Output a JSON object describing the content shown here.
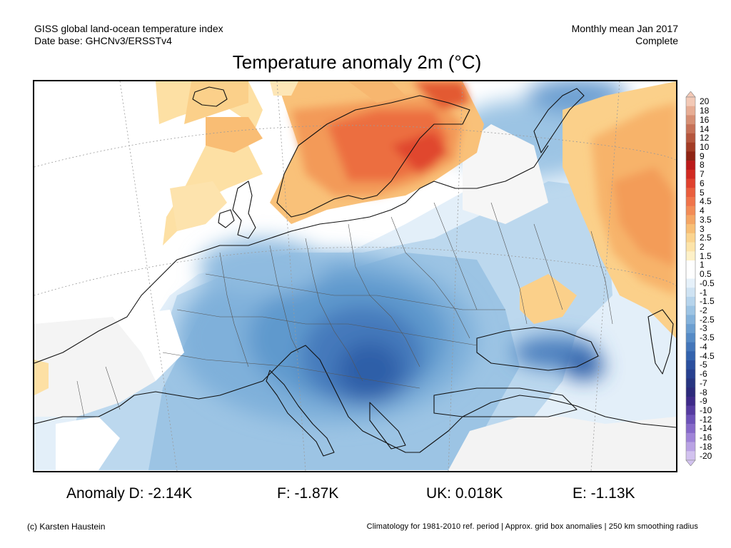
{
  "header": {
    "left_line1": "GISS global land-ocean temperature index",
    "left_line2": "Date base: GHCNv3/ERSSTv4",
    "right_line1": "Monthly mean Jan 2017",
    "right_line2": "Complete"
  },
  "title": "Temperature anomaly 2m (°C)",
  "legend": {
    "labels": [
      "20",
      "18",
      "16",
      "14",
      "12",
      "10",
      "9",
      "8",
      "7",
      "6",
      "5",
      "4.5",
      "4",
      "3.5",
      "3",
      "2.5",
      "2",
      "1.5",
      "1",
      "0.5",
      "-0.5",
      "-1",
      "-1.5",
      "-2",
      "-2.5",
      "-3",
      "-3.5",
      "-4",
      "-4.5",
      "-5",
      "-6",
      "-7",
      "-8",
      "-9",
      "-10",
      "-12",
      "-14",
      "-16",
      "-18",
      "-20"
    ],
    "colors": [
      "#f3c9b6",
      "#e7ad94",
      "#d68f74",
      "#c67157",
      "#b5563d",
      "#a33c25",
      "#8f2414",
      "#bb1a1a",
      "#d12a22",
      "#e0412e",
      "#ea5e3d",
      "#f0744a",
      "#f38c56",
      "#f5a664",
      "#f8bf76",
      "#fbd48f",
      "#fde4a9",
      "#fef1c8",
      "#ffffff",
      "#ffffff",
      "#e6f1fa",
      "#cfe3f3",
      "#b6d4ec",
      "#9dc4e4",
      "#84b2db",
      "#6c9fd1",
      "#568bc6",
      "#4376ba",
      "#3262ad",
      "#2a4f9e",
      "#27408f",
      "#273580",
      "#2c2a7b",
      "#3e2a89",
      "#553ba0",
      "#6d52b8",
      "#8669c9",
      "#a084d8",
      "#b9a2e4",
      "#d2c2ef"
    ]
  },
  "stats": {
    "d": "Anomaly D: -2.14K",
    "f": "F: -1.87K",
    "uk": "UK: 0.018K",
    "e": "E: -1.13K"
  },
  "footer": {
    "left": "(c) Karsten Haustein",
    "right": "Climatology for 1981-2010 ref. period | Approx. grid box anomalies | 250 km smoothing radius"
  }
}
